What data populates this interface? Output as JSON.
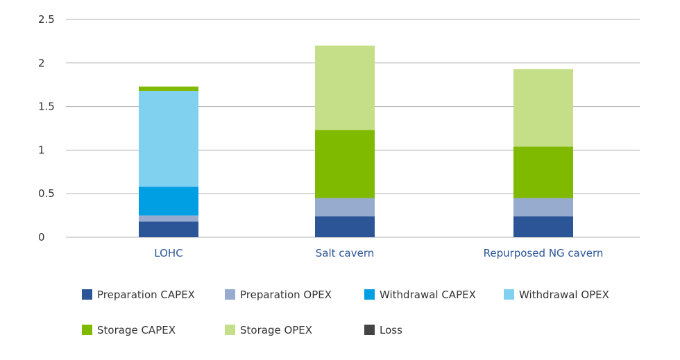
{
  "chart_data": {
    "type": "bar",
    "stacked": true,
    "title": "",
    "xlabel": "",
    "ylabel": "",
    "ylim": [
      0,
      2.5
    ],
    "yticks": [
      0,
      0.5,
      1,
      1.5,
      2,
      2.5
    ],
    "ytick_labels": [
      "0",
      "0.5",
      "1",
      "1.5",
      "2",
      "2.5"
    ],
    "grid": true,
    "legend_position": "bottom",
    "categories": [
      "LOHC",
      "Salt cavern",
      "Repurposed NG cavern"
    ],
    "series": [
      {
        "name": "Preparation CAPEX",
        "color": "#2b5597",
        "values": [
          0.18,
          0.24,
          0.24
        ]
      },
      {
        "name": "Preparation OPEX",
        "color": "#97abcf",
        "values": [
          0.07,
          0.21,
          0.21
        ]
      },
      {
        "name": "Withdrawal CAPEX",
        "color": "#009fe3",
        "values": [
          0.33,
          0,
          0
        ]
      },
      {
        "name": "Withdrawal OPEX",
        "color": "#80d0ef",
        "values": [
          1.1,
          0,
          0
        ]
      },
      {
        "name": "Storage CAPEX",
        "color": "#7fba00",
        "values": [
          0.05,
          0.78,
          0.59
        ]
      },
      {
        "name": "Storage OPEX",
        "color": "#c5df88",
        "values": [
          0,
          0.97,
          0.89
        ]
      },
      {
        "name": "Loss",
        "color": "#444444",
        "values": [
          0,
          0,
          0
        ]
      }
    ]
  }
}
